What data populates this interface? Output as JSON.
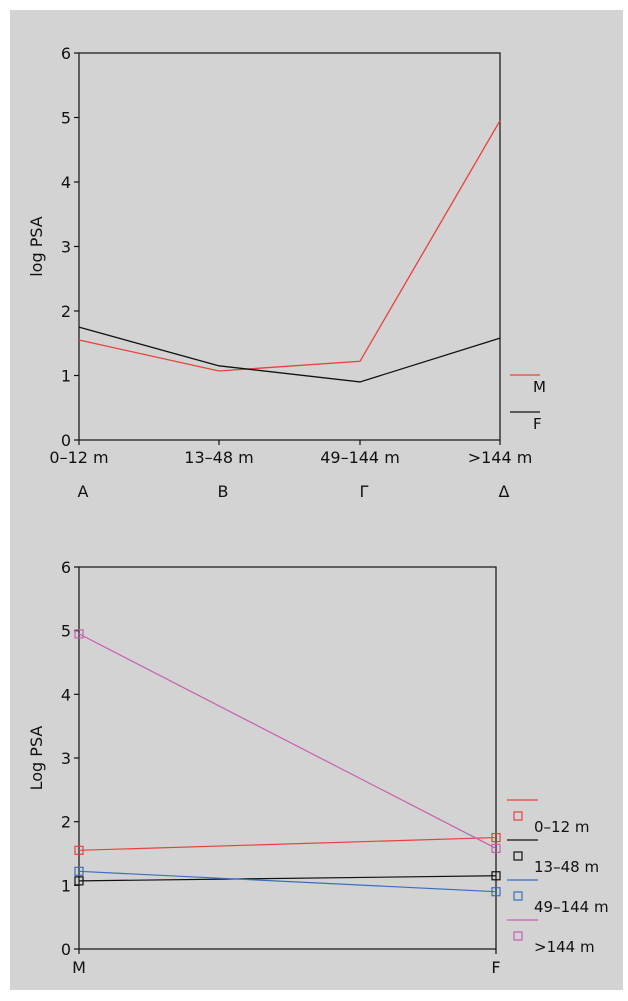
{
  "chart_data": [
    {
      "type": "line",
      "ylabel": "log PSA",
      "xlabel": "",
      "ylim": [
        0,
        6
      ],
      "yticks": [
        "0",
        "1",
        "2",
        "3",
        "4",
        "5",
        "6"
      ],
      "categories": [
        "0–12 m",
        "13–48 m",
        "49–144 m",
        ">144 m"
      ],
      "category_letters": [
        "A",
        "B",
        "Γ",
        "Δ"
      ],
      "series": [
        {
          "name": "M",
          "color": "#e8413c",
          "values": [
            1.55,
            1.07,
            1.22,
            4.95
          ]
        },
        {
          "name": "F",
          "color": "#111111",
          "values": [
            1.75,
            1.15,
            0.9,
            1.58
          ]
        }
      ],
      "grid": false,
      "legend": "right"
    },
    {
      "type": "line",
      "ylabel": "Log PSA",
      "xlabel": "",
      "ylim": [
        0,
        6
      ],
      "yticks": [
        "0",
        "1",
        "2",
        "3",
        "4",
        "5",
        "6"
      ],
      "categories": [
        "M",
        "F"
      ],
      "series": [
        {
          "name": "0–12 m",
          "color": "#e8413c",
          "values": [
            1.55,
            1.75
          ]
        },
        {
          "name": "13–48 m",
          "color": "#111111",
          "values": [
            1.07,
            1.15
          ]
        },
        {
          "name": "49–144 m",
          "color": "#3a6fbf",
          "values": [
            1.22,
            0.9
          ]
        },
        {
          "name": ">144 m",
          "color": "#c95fb0",
          "values": [
            4.95,
            1.58
          ]
        }
      ],
      "markers": "open-square",
      "grid": false,
      "legend": "right"
    }
  ]
}
